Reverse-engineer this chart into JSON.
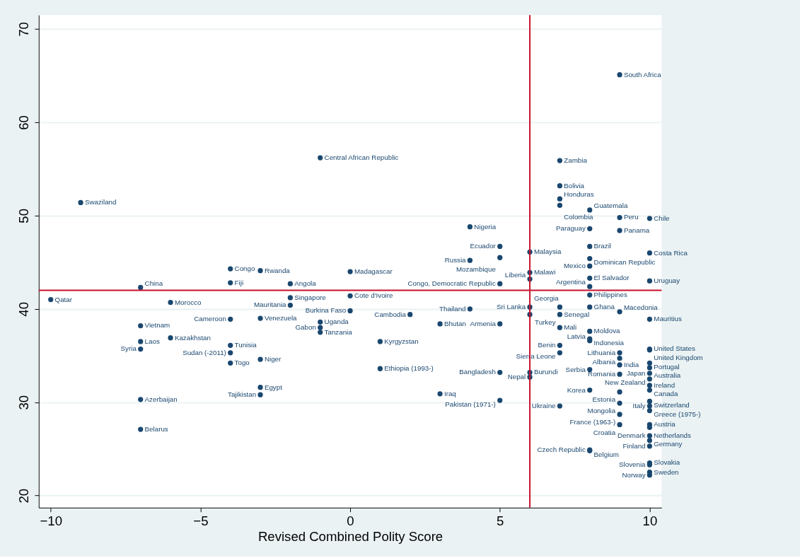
{
  "chart_data": {
    "type": "scatter",
    "xlabel": "Revised Combined Polity Score",
    "xlim": [
      -10.4,
      10.4
    ],
    "xticks": [
      -10,
      -5,
      0,
      5,
      10
    ],
    "ylim": [
      18.7,
      71.5
    ],
    "yticks": [
      20,
      30,
      40,
      50,
      60,
      70
    ],
    "grid": "y",
    "marker": "circle",
    "ref_lines": [
      {
        "axis": "x",
        "value": 6,
        "color": "#c8102e"
      },
      {
        "axis": "y",
        "value": 42,
        "color": "#c8102e"
      }
    ],
    "series": [
      {
        "color": "#1a476f",
        "x": [
          9,
          -1,
          7,
          -9,
          7,
          7,
          7,
          8,
          9,
          10,
          8,
          9,
          4,
          5,
          5,
          4,
          6,
          6,
          6,
          5,
          8,
          8,
          8,
          8,
          8,
          8,
          8,
          10,
          10,
          9,
          10,
          4,
          5,
          3,
          6,
          6,
          7,
          7,
          7,
          8,
          8,
          8,
          7,
          7,
          9,
          9,
          9,
          9,
          10,
          10,
          10,
          10,
          10,
          10,
          10,
          10,
          10,
          10,
          10,
          10,
          10,
          10,
          10,
          10,
          10,
          10,
          10,
          10,
          8,
          8,
          8,
          9,
          9,
          9,
          9,
          8,
          5,
          6,
          6,
          5,
          7,
          3,
          1,
          1,
          2,
          0,
          0,
          0,
          -1,
          -1,
          -1,
          -3,
          -4,
          -10,
          -7,
          -6,
          -7,
          -7,
          -7,
          -6,
          -7,
          -7,
          -4,
          -4,
          -3,
          -2,
          -2,
          -2,
          -4,
          -4,
          -4,
          -3,
          -3,
          -3
        ],
        "values": [
          65.1,
          56.2,
          55.9,
          51.4,
          53.2,
          51.8,
          51.1,
          50.6,
          49.8,
          49.7,
          48.6,
          48.4,
          48.8,
          46.7,
          45.5,
          45.2,
          46.1,
          43.9,
          43.2,
          42.7,
          46.7,
          45.4,
          44.6,
          43.3,
          42.4,
          41.5,
          40.2,
          46.0,
          43.0,
          39.7,
          38.9,
          40.0,
          38.4,
          38.4,
          40.2,
          39.4,
          40.2,
          39.4,
          38.0,
          37.6,
          36.8,
          36.6,
          36.1,
          35.3,
          35.3,
          34.7,
          34.0,
          33.0,
          35.7,
          35.6,
          34.2,
          33.7,
          33.1,
          32.5,
          31.8,
          31.3,
          30.1,
          29.6,
          29.1,
          27.6,
          27.3,
          26.4,
          25.9,
          25.3,
          23.5,
          23.3,
          22.5,
          22.2,
          24.9,
          24.8,
          31.3,
          31.1,
          29.9,
          28.7,
          27.6,
          33.5,
          33.2,
          33.2,
          32.7,
          30.2,
          29.6,
          30.9,
          33.6,
          36.5,
          39.4,
          39.8,
          41.4,
          44.0,
          38.6,
          38.0,
          37.5,
          39.0,
          38.9,
          41.0,
          42.3,
          40.7,
          38.2,
          36.5,
          35.7,
          36.9,
          30.3,
          27.1,
          44.3,
          42.8,
          44.1,
          42.7,
          41.2,
          40.4,
          36.1,
          35.3,
          34.2,
          34.6,
          31.6,
          30.8
        ]
      }
    ],
    "annotations": [
      {
        "text": "South Africa",
        "x": 9,
        "y": 65.1
      },
      {
        "text": "Central African Republic",
        "x": -1,
        "y": 56.2
      },
      {
        "text": "Zambia",
        "x": 7,
        "y": 55.9
      },
      {
        "text": "Swaziland",
        "x": -9,
        "y": 51.4
      },
      {
        "text": "Bolivia",
        "x": 7,
        "y": 53.2
      },
      {
        "text": "Honduras",
        "x": 7,
        "y": 51.8
      },
      {
        "text": "Colombia",
        "x": 7,
        "y": 51.1
      },
      {
        "text": "Guatemala",
        "x": 8,
        "y": 50.6
      },
      {
        "text": "Peru",
        "x": 9,
        "y": 49.8
      },
      {
        "text": "Chile",
        "x": 10,
        "y": 49.7
      },
      {
        "text": "Paraguay",
        "x": 8,
        "y": 48.6
      },
      {
        "text": "Panama",
        "x": 9,
        "y": 48.4
      },
      {
        "text": "Nigeria",
        "x": 4,
        "y": 48.8
      },
      {
        "text": "Ecuador",
        "x": 5,
        "y": 46.7
      },
      {
        "text": "Mozambique",
        "x": 5,
        "y": 45.5
      },
      {
        "text": "Russia",
        "x": 4,
        "y": 45.2
      },
      {
        "text": "Malaysia",
        "x": 6,
        "y": 46.1
      },
      {
        "text": "Malawi",
        "x": 6,
        "y": 43.9
      },
      {
        "text": "Liberia",
        "x": 6,
        "y": 43.2
      },
      {
        "text": "Congo, Democratic Republic",
        "x": 5,
        "y": 42.7
      },
      {
        "text": "Brazil",
        "x": 8,
        "y": 46.7
      },
      {
        "text": "Dominican Republic",
        "x": 8,
        "y": 45.4
      },
      {
        "text": "Mexico",
        "x": 8,
        "y": 44.6
      },
      {
        "text": "El Salvador",
        "x": 8,
        "y": 43.3
      },
      {
        "text": "Argentina",
        "x": 8,
        "y": 42.4
      },
      {
        "text": "Philippines",
        "x": 8,
        "y": 41.5
      },
      {
        "text": "Ghana",
        "x": 8,
        "y": 40.2
      },
      {
        "text": "Costa Rica",
        "x": 10,
        "y": 46.0
      },
      {
        "text": "Uruguay",
        "x": 10,
        "y": 43.0
      },
      {
        "text": "Macedonia",
        "x": 9,
        "y": 39.7
      },
      {
        "text": "Mauritius",
        "x": 10,
        "y": 38.9
      },
      {
        "text": "Thailand",
        "x": 4,
        "y": 40.0
      },
      {
        "text": "Armenia",
        "x": 5,
        "y": 38.4
      },
      {
        "text": "Bhutan",
        "x": 3,
        "y": 38.4
      },
      {
        "text": "Sri Lanka",
        "x": 6,
        "y": 40.2
      },
      {
        "text": "Georgia",
        "x": 6,
        "y": 39.4
      },
      {
        "text": "Senegal",
        "x": 7,
        "y": 40.2
      },
      {
        "text": "Turkey",
        "x": 7,
        "y": 39.4
      },
      {
        "text": "Mali",
        "x": 7,
        "y": 38.0
      },
      {
        "text": "Moldova",
        "x": 8,
        "y": 37.6
      },
      {
        "text": "Indonesia",
        "x": 8,
        "y": 36.8
      },
      {
        "text": "Latvia",
        "x": 8,
        "y": 36.6
      },
      {
        "text": "Benin",
        "x": 7,
        "y": 36.1
      },
      {
        "text": "Sierra Leone",
        "x": 7,
        "y": 35.3
      },
      {
        "text": "Lithuania",
        "x": 9,
        "y": 35.3
      },
      {
        "text": "Albania",
        "x": 9,
        "y": 34.7
      },
      {
        "text": "India",
        "x": 9,
        "y": 34.0
      },
      {
        "text": "Romania",
        "x": 9,
        "y": 33.0
      },
      {
        "text": "United States",
        "x": 10,
        "y": 35.7
      },
      {
        "text": "United Kingdom",
        "x": 10,
        "y": 35.6
      },
      {
        "text": "Portugal",
        "x": 10,
        "y": 34.2
      },
      {
        "text": "Australia",
        "x": 10,
        "y": 33.7
      },
      {
        "text": "Japan",
        "x": 10,
        "y": 33.1
      },
      {
        "text": "New Zealand",
        "x": 10,
        "y": 32.5
      },
      {
        "text": "Ireland",
        "x": 10,
        "y": 31.8
      },
      {
        "text": "Canada",
        "x": 10,
        "y": 31.3
      },
      {
        "text": "Switzerland",
        "x": 10,
        "y": 30.1
      },
      {
        "text": "Italy",
        "x": 10,
        "y": 29.6
      },
      {
        "text": "Greece (1975-)",
        "x": 10,
        "y": 29.1
      },
      {
        "text": "Austria",
        "x": 10,
        "y": 27.6
      },
      {
        "text": "Netherlands",
        "x": 10,
        "y": 27.3
      },
      {
        "text": "Denmark",
        "x": 10,
        "y": 26.4
      },
      {
        "text": "Germany",
        "x": 10,
        "y": 25.9
      },
      {
        "text": "Finland",
        "x": 10,
        "y": 25.3
      },
      {
        "text": "Slovakia",
        "x": 10,
        "y": 23.5
      },
      {
        "text": "Slovenia",
        "x": 10,
        "y": 23.3
      },
      {
        "text": "Sweden",
        "x": 10,
        "y": 22.5
      },
      {
        "text": "Norway",
        "x": 10,
        "y": 22.2
      },
      {
        "text": "Czech Republic",
        "x": 8,
        "y": 24.9
      },
      {
        "text": "Belgium",
        "x": 8,
        "y": 24.8
      },
      {
        "text": "Korea",
        "x": 8,
        "y": 31.3
      },
      {
        "text": "Estonia",
        "x": 9,
        "y": 31.1
      },
      {
        "text": "Mongolia",
        "x": 9,
        "y": 29.9
      },
      {
        "text": "France (1963-)",
        "x": 9,
        "y": 28.7
      },
      {
        "text": "Croatia",
        "x": 9,
        "y": 27.6
      },
      {
        "text": "Serbia",
        "x": 8,
        "y": 33.5
      },
      {
        "text": "Bangladesh",
        "x": 5,
        "y": 33.2
      },
      {
        "text": "Burundi",
        "x": 6,
        "y": 33.2
      },
      {
        "text": "Nepal",
        "x": 6,
        "y": 32.7
      },
      {
        "text": "Pakistan (1971-)",
        "x": 5,
        "y": 30.2
      },
      {
        "text": "Ukraine",
        "x": 7,
        "y": 29.6
      },
      {
        "text": "Iraq",
        "x": 3,
        "y": 30.9
      },
      {
        "text": "Ethiopia (1993-)",
        "x": 1,
        "y": 33.6
      },
      {
        "text": "Kyrgyzstan",
        "x": 1,
        "y": 36.5
      },
      {
        "text": "Cambodia",
        "x": 2,
        "y": 39.4
      },
      {
        "text": "Burkina Faso",
        "x": 0,
        "y": 39.8
      },
      {
        "text": "Cote d'Ivoire",
        "x": 0,
        "y": 41.4
      },
      {
        "text": "Madagascar",
        "x": 0,
        "y": 44.0
      },
      {
        "text": "Uganda",
        "x": -1,
        "y": 38.6
      },
      {
        "text": "Gabon",
        "x": -1,
        "y": 38.0
      },
      {
        "text": "Tanzania",
        "x": -1,
        "y": 37.5
      },
      {
        "text": "Venezuela",
        "x": -3,
        "y": 39.0
      },
      {
        "text": "Cameroon",
        "x": -4,
        "y": 38.9
      },
      {
        "text": "Qatar",
        "x": -10,
        "y": 41.0
      },
      {
        "text": "China",
        "x": -7,
        "y": 42.3
      },
      {
        "text": "Morocco",
        "x": -6,
        "y": 40.7
      },
      {
        "text": "Vietnam",
        "x": -7,
        "y": 38.2
      },
      {
        "text": "Laos",
        "x": -7,
        "y": 36.5
      },
      {
        "text": "Syria",
        "x": -7,
        "y": 35.7
      },
      {
        "text": "Kazakhstan",
        "x": -6,
        "y": 36.9
      },
      {
        "text": "Azerbaijan",
        "x": -7,
        "y": 30.3
      },
      {
        "text": "Belarus",
        "x": -7,
        "y": 27.1
      },
      {
        "text": "Congo",
        "x": -4,
        "y": 44.3
      },
      {
        "text": "Fiji",
        "x": -4,
        "y": 42.8
      },
      {
        "text": "Rwanda",
        "x": -3,
        "y": 44.1
      },
      {
        "text": "Angola",
        "x": -2,
        "y": 42.7
      },
      {
        "text": "Singapore",
        "x": -2,
        "y": 41.2
      },
      {
        "text": "Mauritania",
        "x": -2,
        "y": 40.4
      },
      {
        "text": "Tunisia",
        "x": -4,
        "y": 36.1
      },
      {
        "text": "Sudan (-2011)",
        "x": -4,
        "y": 35.3
      },
      {
        "text": "Togo",
        "x": -4,
        "y": 34.2
      },
      {
        "text": "Niger",
        "x": -3,
        "y": 34.6
      },
      {
        "text": "Egypt",
        "x": -3,
        "y": 31.6
      },
      {
        "text": "Tajikistan",
        "x": -3,
        "y": 30.8
      }
    ]
  }
}
